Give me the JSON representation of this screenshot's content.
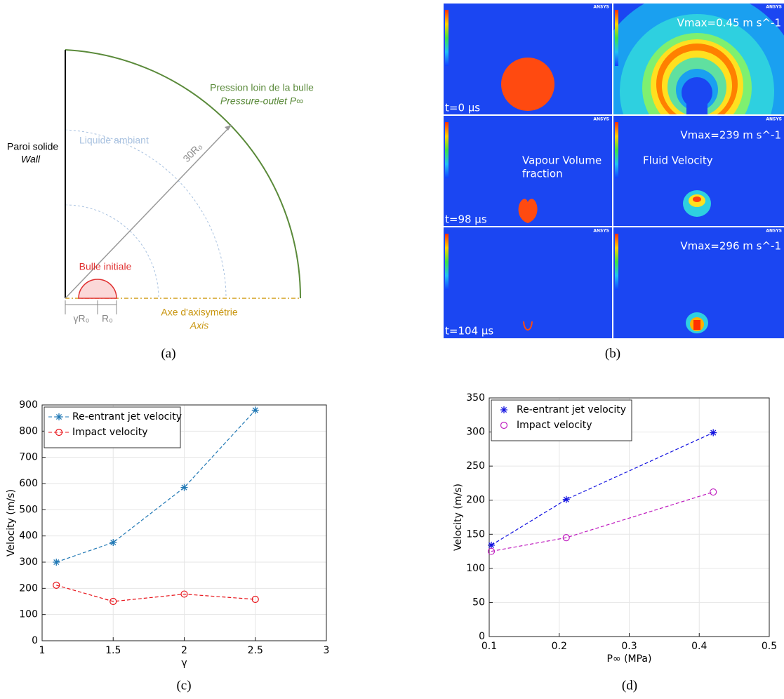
{
  "figure": {
    "captions": [
      "(a)",
      "(b)",
      "(c)",
      "(d)"
    ],
    "diagram": {
      "wall": "Paroi solide",
      "wall_en": "Wall",
      "far": "Pression loin de la bulle",
      "far_en": "Pressure-outlet P∞",
      "liquid": "Liquide ambiant",
      "radius": "30R₀",
      "bubble": "Bulle initiale",
      "axis": "Axe d'axisymétrie",
      "axis_en": "Axis",
      "gamma": "γR₀",
      "r0": "R₀"
    },
    "simulation": {
      "brand": "ANSYS",
      "t0": "t=0 µs",
      "t1": "t=98 µs",
      "t2": "t=104 µs",
      "v0": "Vmax=0.45 m s^-1",
      "v1": "Vmax=239 m s^-1",
      "v2": "Vmax=296 m s^-1",
      "vapour": "Vapour Volume",
      "vapour2": "fraction",
      "fluid": "Fluid Velocity"
    }
  },
  "chart_data": [
    {
      "type": "line",
      "x": [
        1.1,
        1.5,
        2,
        2.5
      ],
      "x_label": "γ",
      "y_label": "Velocity (m/s)",
      "xlim": [
        1,
        3
      ],
      "xticks": [
        1,
        1.5,
        2,
        2.5,
        3
      ],
      "ylim": [
        0,
        900
      ],
      "yticks": [
        0,
        100,
        200,
        300,
        400,
        500,
        600,
        700,
        800,
        900
      ],
      "grid": true,
      "legend": "upper left",
      "legend_lines": true,
      "series": [
        {
          "name": "Re-entrant jet velocity",
          "color": "#1f77b4",
          "marker": "star",
          "values": [
            300,
            375,
            585,
            880
          ]
        },
        {
          "name": "Impact velocity",
          "color": "#e8151b",
          "marker": "circle",
          "values": [
            212,
            150,
            178,
            158
          ]
        }
      ]
    },
    {
      "type": "line",
      "x": [
        0.103,
        0.21,
        0.42
      ],
      "x_label": "P∞ (MPa)",
      "y_label": "Velocity (m/s)",
      "xlim": [
        0.1,
        0.5
      ],
      "xticks": [
        0.1,
        0.2,
        0.3,
        0.4,
        0.5
      ],
      "ylim": [
        0,
        350
      ],
      "yticks": [
        0,
        50,
        100,
        150,
        200,
        250,
        300,
        350
      ],
      "grid": true,
      "legend": "upper left",
      "legend_lines": false,
      "series": [
        {
          "name": "Re-entrant jet velocity",
          "color": "#1010e0",
          "marker": "star",
          "values": [
            134,
            201,
            299
          ]
        },
        {
          "name": "Impact velocity",
          "color": "#c020c0",
          "marker": "circle",
          "values": [
            125,
            145,
            212
          ]
        }
      ]
    }
  ]
}
